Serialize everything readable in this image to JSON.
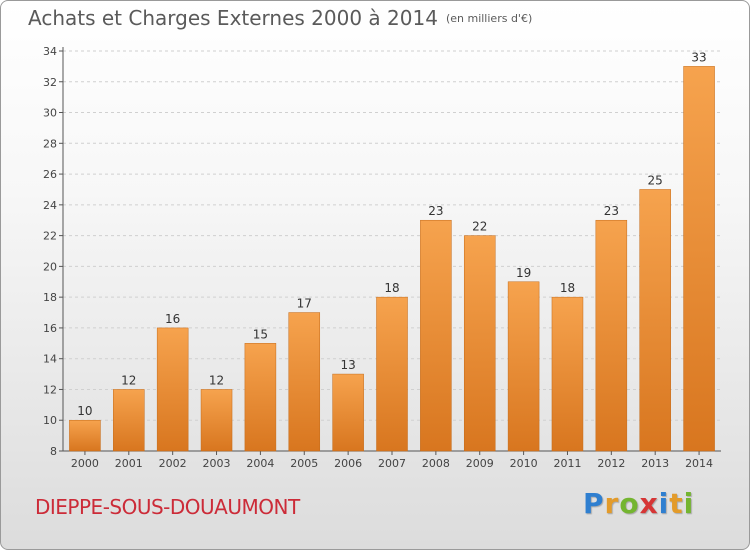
{
  "header": {
    "title": "Achats et Charges Externes 2000 à 2014",
    "unit": "(en milliers d'€)"
  },
  "footer": {
    "commune": "DIEPPE-SOUS-DOUAUMONT",
    "logo_text": [
      "P",
      "r",
      "o",
      "x",
      "i",
      "t",
      "i"
    ]
  },
  "colors": {
    "bar_light": "#f6a34e",
    "bar_dark": "#d8761f",
    "title": "#5a5a5a",
    "commune": "#cc2b38",
    "grid": "#d0d0d0"
  },
  "chart_data": {
    "type": "bar",
    "title": "Achats et Charges Externes 2000 à 2014",
    "subtitle": "(en milliers d'€)",
    "xlabel": "",
    "ylabel": "",
    "ylim": [
      8,
      34
    ],
    "ytick_step": 2,
    "grid": "horizontal dashed",
    "categories": [
      "2000",
      "2001",
      "2002",
      "2003",
      "2004",
      "2005",
      "2006",
      "2007",
      "2008",
      "2009",
      "2010",
      "2011",
      "2012",
      "2013",
      "2014"
    ],
    "values": [
      10,
      12,
      16,
      12,
      15,
      17,
      13,
      18,
      23,
      22,
      19,
      18,
      23,
      25,
      33
    ],
    "data_labels": true
  }
}
